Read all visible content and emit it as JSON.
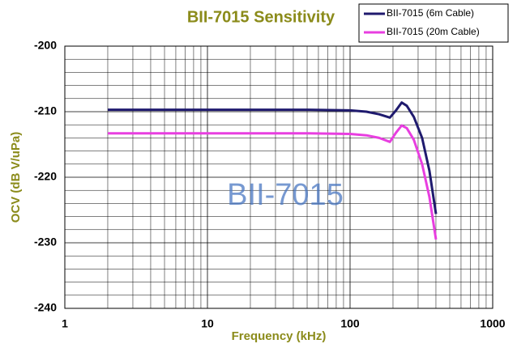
{
  "chart_data": {
    "type": "line",
    "title": "BII-7015 Sensitivity",
    "xlabel": "Frequency (kHz)",
    "ylabel": "OCV (dB V/uPa)",
    "annotation": "BII-7015",
    "x": [
      2,
      10,
      50,
      100,
      130,
      160,
      190,
      210,
      230,
      250,
      280,
      320,
      360,
      400
    ],
    "series": [
      {
        "name": "BII-7015 (6m Cable)",
        "color": "#1f1a6e",
        "values": [
          -209.7,
          -209.7,
          -209.7,
          -209.8,
          -210.0,
          -210.4,
          -210.9,
          -209.8,
          -208.6,
          -209.1,
          -210.8,
          -214.0,
          -219.0,
          -225.6
        ]
      },
      {
        "name": "BII-7015 (20m Cable)",
        "color": "#e83ee0",
        "values": [
          -213.3,
          -213.3,
          -213.3,
          -213.4,
          -213.6,
          -214.0,
          -214.6,
          -213.2,
          -212.1,
          -212.5,
          -214.3,
          -218.0,
          -223.0,
          -229.5
        ]
      }
    ],
    "xlim": [
      1,
      1000
    ],
    "xticks": [
      1,
      10,
      100,
      1000
    ],
    "xscale": "log",
    "ylim": [
      -240,
      -200
    ],
    "yticks": [
      -240,
      -230,
      -220,
      -210,
      -200
    ],
    "grid": true,
    "legend": "top-right"
  }
}
